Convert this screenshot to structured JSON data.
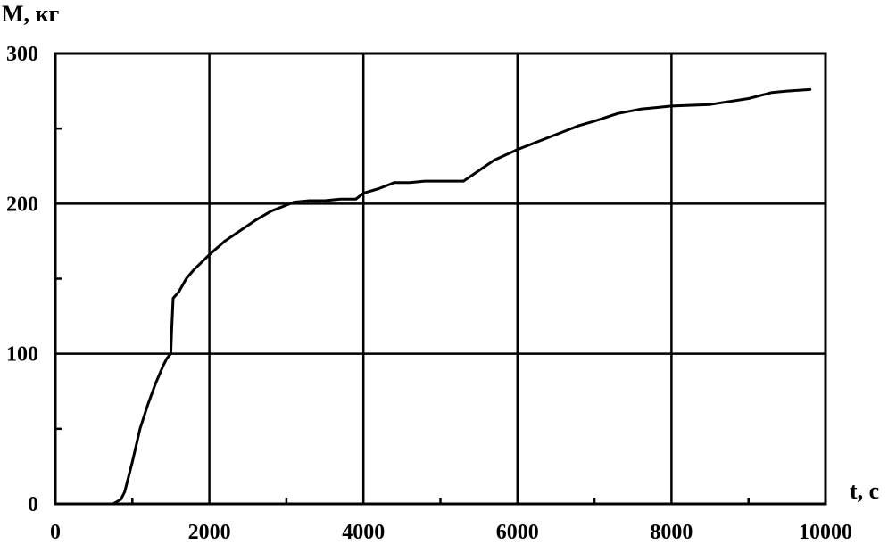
{
  "chart_data": {
    "type": "line",
    "title": "",
    "xlabel": "t, c",
    "ylabel": "M, кг",
    "xlim": [
      0,
      10000
    ],
    "ylim": [
      0,
      300
    ],
    "grid": true,
    "x_ticks": [
      "0",
      "2000",
      "4000",
      "6000",
      "8000",
      "10000"
    ],
    "y_ticks": [
      "0",
      "100",
      "200",
      "300"
    ],
    "series": [
      {
        "x": [
          0,
          750,
          850,
          900,
          950,
          1000,
          1100,
          1200,
          1300,
          1400,
          1450,
          1500,
          1510,
          1530,
          1600,
          1700,
          1800,
          2000,
          2200,
          2400,
          2600,
          2800,
          3000,
          3100,
          3300,
          3500,
          3700,
          3900,
          4000,
          4200,
          4300,
          4400,
          4600,
          4800,
          5000,
          5300,
          5500,
          5700,
          6000,
          6300,
          6500,
          6800,
          7000,
          7300,
          7600,
          7800,
          8000,
          8500,
          9000,
          9300,
          9500,
          9800
        ],
        "y": [
          0,
          0,
          3,
          8,
          18,
          28,
          50,
          66,
          80,
          92,
          97,
          100,
          115,
          137,
          141,
          150,
          156,
          166,
          175,
          182,
          189,
          195,
          199,
          201,
          202,
          202,
          203,
          203,
          207,
          210,
          212,
          214,
          214,
          215,
          215,
          215,
          222,
          229,
          236,
          242,
          246,
          252,
          255,
          260,
          263,
          264,
          265,
          266,
          270,
          274,
          275,
          276
        ]
      }
    ]
  }
}
